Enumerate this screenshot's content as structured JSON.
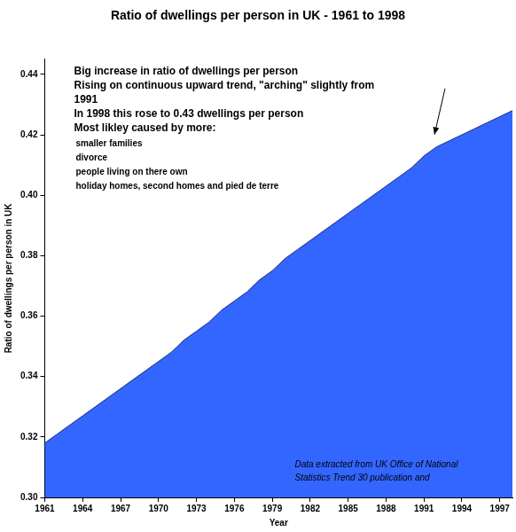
{
  "chart_data": {
    "type": "area",
    "title": "Ratio of dwellings per person in UK - 1961 to 1998",
    "x_label": "Year",
    "y_label": "Ratio of dwellings per person in UK",
    "categories": [
      "1961",
      null,
      null,
      "1964",
      null,
      null,
      "1967",
      null,
      null,
      "1970",
      null,
      null,
      "1973",
      null,
      null,
      "1976",
      null,
      null,
      "1979",
      null,
      null,
      "1982",
      null,
      null,
      "1985",
      null,
      null,
      "1988",
      null,
      null,
      "1991",
      null,
      null,
      "1994",
      null,
      null,
      "1997",
      null
    ],
    "values": [
      0.318,
      0.321,
      0.324,
      0.327,
      0.33,
      0.333,
      0.336,
      0.339,
      0.342,
      0.345,
      0.348,
      0.352,
      0.355,
      0.358,
      0.362,
      0.365,
      0.368,
      0.372,
      0.375,
      0.379,
      0.382,
      0.385,
      0.388,
      0.391,
      0.394,
      0.397,
      0.4,
      0.403,
      0.406,
      0.409,
      0.413,
      0.416,
      0.418,
      0.42,
      0.422,
      0.424,
      0.426,
      0.428
    ],
    "color": "#3366ff",
    "ylim": [
      0.3,
      0.445
    ],
    "yticks": [
      {
        "value": 0.3,
        "label": "0.30"
      },
      0.32,
      0.34,
      0.36,
      0.38,
      {
        "value": 0.4,
        "label": "0.40"
      },
      0.42,
      0.44
    ],
    "grid": false,
    "annotations": {
      "main": [
        "Big increase in ratio of dwellings per person",
        "Rising on continuous upward trend, \"arching\" slightly from",
        "1991",
        "In 1998 this rose to 0.43 dwellings per person",
        "Most likley caused by more:"
      ],
      "causes": [
        "smaller families",
        "divorce",
        "people living on there own",
        "holiday homes, second homes and pied de terre"
      ],
      "source": [
        "Data extracted from UK Office of National",
        "Statistics Trend 30 publication and"
      ]
    }
  }
}
